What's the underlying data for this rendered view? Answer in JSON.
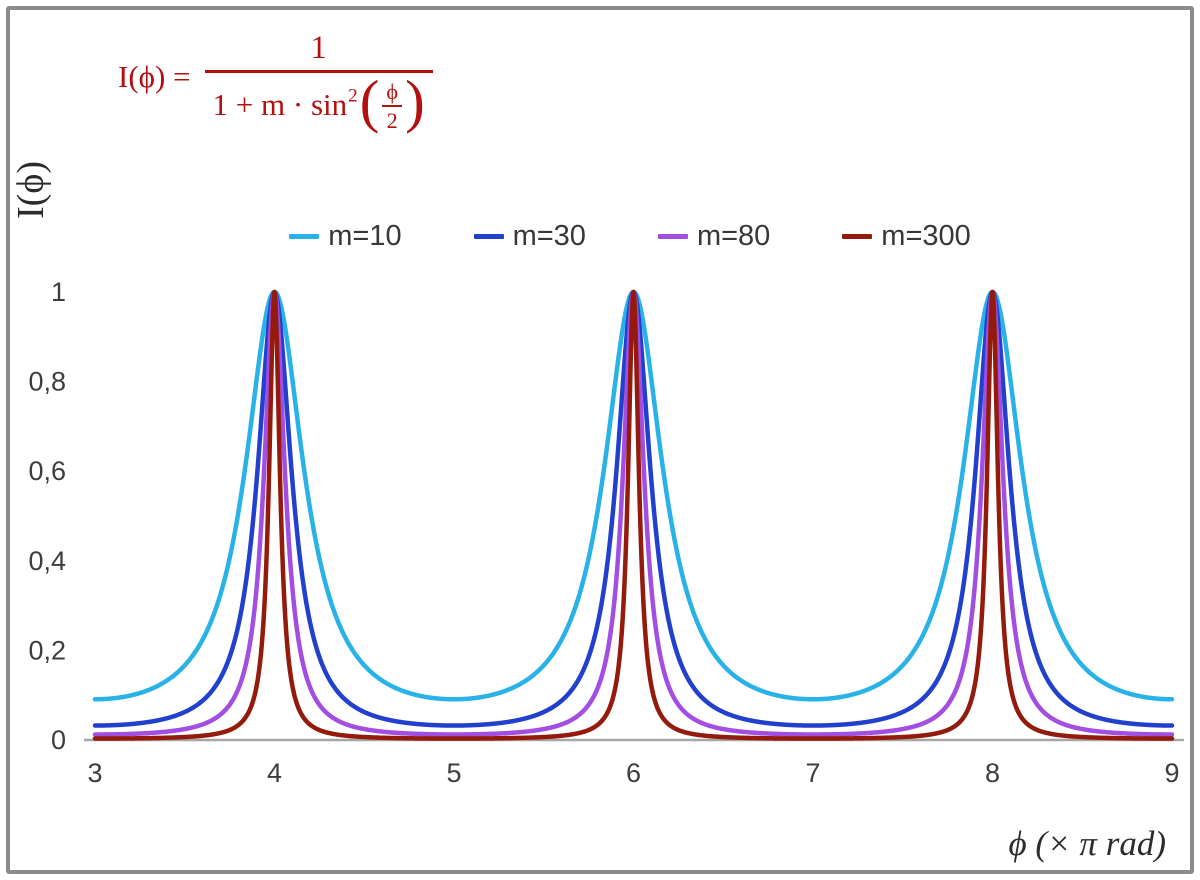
{
  "page": {
    "background": "#ffffff",
    "frame_color": "#8c8c8c"
  },
  "formula": {
    "lhs": "I(ϕ) =",
    "numerator": "1",
    "den_prefix": "1 + m · sin",
    "den_sup": "2",
    "lparen": "(",
    "rparen": ")",
    "inner_num": "ϕ",
    "inner_den": "2",
    "color": "#b40e0e"
  },
  "axes": {
    "y_label": "I(ϕ)",
    "x_label": "ϕ  (× π rad)"
  },
  "chart_data": {
    "type": "line",
    "title": "",
    "annotation": "I(ϕ) = 1 / (1 + m · sin²(ϕ/2))",
    "xlabel": "ϕ (× π rad)",
    "ylabel": "I(ϕ)",
    "xlim": [
      3,
      9
    ],
    "ylim": [
      0,
      1
    ],
    "x_ticks": [
      {
        "value": 3,
        "label": "3"
      },
      {
        "value": 4,
        "label": "4"
      },
      {
        "value": 5,
        "label": "5"
      },
      {
        "value": 6,
        "label": "6"
      },
      {
        "value": 7,
        "label": "7"
      },
      {
        "value": 8,
        "label": "8"
      },
      {
        "value": 9,
        "label": "9"
      }
    ],
    "y_ticks": [
      {
        "value": 0,
        "label": "0"
      },
      {
        "value": 0.2,
        "label": "0,2"
      },
      {
        "value": 0.4,
        "label": "0,4"
      },
      {
        "value": 0.6,
        "label": "0,6"
      },
      {
        "value": 0.8,
        "label": "0,8"
      },
      {
        "value": 1,
        "label": "1"
      }
    ],
    "function": "I(x) = 1 / (1 + m * sin(pi*x/2)^2), x in units of pi rad",
    "peaks_at_x": [
      4,
      6,
      8
    ],
    "peak_value": 1,
    "series": [
      {
        "name": "m=10",
        "m": 10,
        "color": "#29b2e8"
      },
      {
        "name": "m=30",
        "m": 30,
        "color": "#2140ce"
      },
      {
        "name": "m=80",
        "m": 80,
        "color": "#a34ee3"
      },
      {
        "name": "m=300",
        "m": 300,
        "color": "#941b0c"
      }
    ],
    "sample_step": 0.002,
    "line_width": 4.5,
    "axis_color": "#a6a6a6",
    "tick_color": "#3d3d3d",
    "legend_position": "top-center",
    "grid": false
  }
}
